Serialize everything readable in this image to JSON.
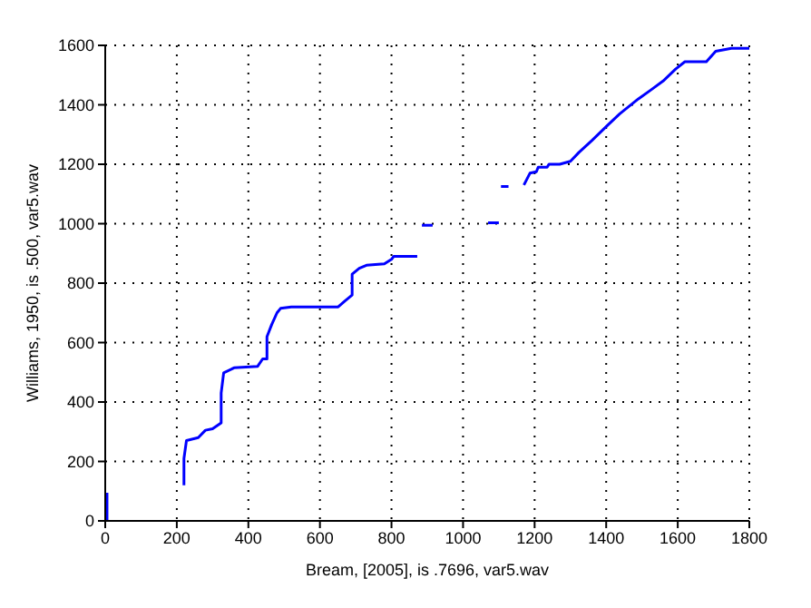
{
  "chart_data": {
    "type": "line",
    "xlabel": "Bream, [2005], is .7696, var5.wav",
    "ylabel": "Williams, 1950, is .500, var5.wav",
    "x": [
      5,
      5,
      null,
      220,
      220,
      227,
      260,
      280,
      300,
      324,
      324,
      331,
      360,
      426,
      440,
      452,
      452,
      465,
      480,
      490,
      520,
      651,
      670,
      690,
      690,
      710,
      730,
      780,
      800,
      806,
      872,
      null,
      885,
      915,
      null,
      1070,
      1100,
      null,
      1106,
      1127,
      null,
      1170,
      1187,
      1205,
      1210,
      1235,
      1240,
      1270,
      1300,
      1324,
      1360,
      1403,
      1438,
      1490,
      1525,
      1559,
      1594,
      1620,
      1655,
      1680,
      1706,
      1750,
      1800
    ],
    "series": [
      {
        "color": "#0000ff",
        "values": [
          0,
          95,
          null,
          120,
          210,
          270,
          280,
          305,
          310,
          330,
          430,
          498,
          515,
          520,
          545,
          545,
          620,
          660,
          700,
          715,
          720,
          720,
          740,
          760,
          830,
          850,
          860,
          865,
          880,
          890,
          890,
          null,
          995,
          995,
          null,
          1003,
          1003,
          null,
          1125,
          1125,
          null,
          1130,
          1170,
          1175,
          1190,
          1190,
          1200,
          1200,
          1210,
          1240,
          1280,
          1330,
          1370,
          1420,
          1450,
          1480,
          1520,
          1545,
          1545,
          1545,
          1580,
          1590,
          1590
        ]
      }
    ],
    "xlim": [
      0,
      1800
    ],
    "xticks": [
      0,
      200,
      400,
      600,
      800,
      1000,
      1200,
      1400,
      1600,
      1800
    ],
    "ylim": [
      0,
      1600
    ],
    "yticks": [
      0,
      200,
      400,
      600,
      800,
      1000,
      1200,
      1400,
      1600
    ],
    "grid": true,
    "marker": "none",
    "line_style": "solid"
  }
}
